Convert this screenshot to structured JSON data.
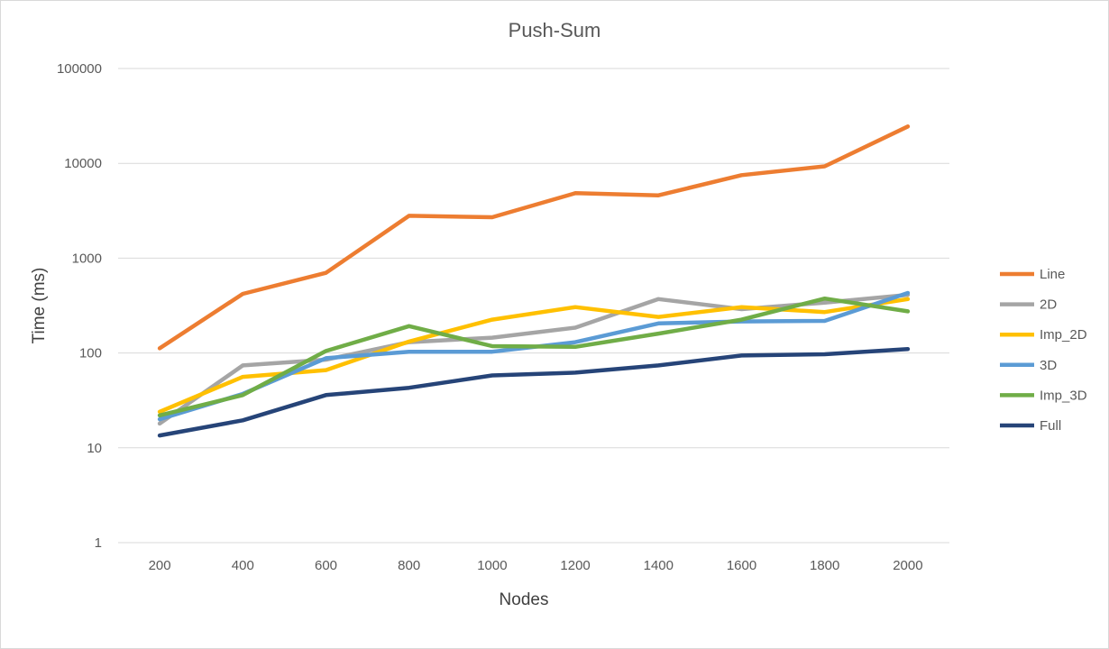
{
  "chart_data": {
    "type": "line",
    "title": "Push-Sum",
    "xlabel": "Nodes",
    "ylabel": "Time (ms)",
    "yscale": "log",
    "ylim": [
      1,
      100000
    ],
    "y_ticks": [
      "1",
      "10",
      "100",
      "1000",
      "10000",
      "100000"
    ],
    "categories": [
      "200",
      "400",
      "600",
      "800",
      "1000",
      "1200",
      "1400",
      "1600",
      "1800",
      "2000"
    ],
    "grid": true,
    "legend_position": "right",
    "series": [
      {
        "name": "Line",
        "color": "#ED7D31",
        "values": [
          112,
          420,
          700,
          2800,
          2700,
          4850,
          4600,
          7500,
          9300,
          24500
        ]
      },
      {
        "name": "2D",
        "color": "#A5A5A5",
        "values": [
          18,
          74,
          85,
          130,
          145,
          185,
          370,
          290,
          340,
          410
        ]
      },
      {
        "name": "Imp_2D",
        "color": "#FFC000",
        "values": [
          24,
          56,
          66,
          132,
          225,
          305,
          240,
          305,
          270,
          370
        ]
      },
      {
        "name": "3D",
        "color": "#5B9BD5",
        "values": [
          20,
          37,
          88,
          103,
          103,
          130,
          205,
          215,
          218,
          430
        ]
      },
      {
        "name": "Imp_3D",
        "color": "#70AD47",
        "values": [
          22,
          36,
          105,
          192,
          118,
          116,
          160,
          225,
          375,
          275
        ]
      },
      {
        "name": "Full",
        "color": "#264478",
        "values": [
          13.5,
          19.5,
          36,
          43,
          58,
          62,
          74,
          94,
          97,
          110
        ]
      }
    ]
  }
}
